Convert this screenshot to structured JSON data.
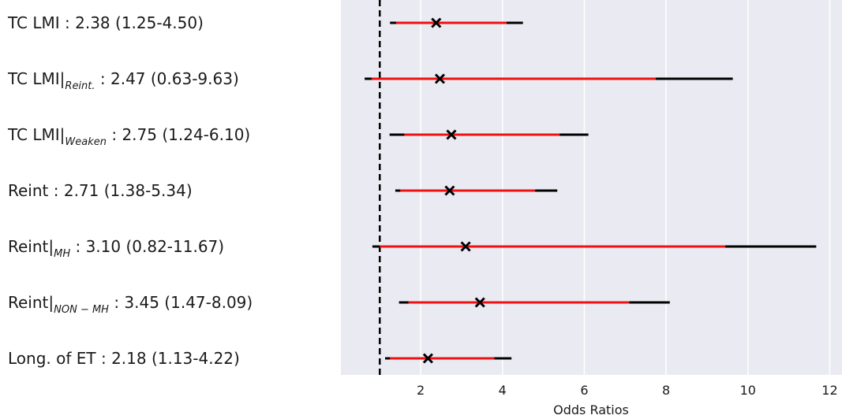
{
  "chart_data": {
    "type": "forest",
    "xlabel": "Odds Ratios",
    "xlim": [
      0.05,
      12.3
    ],
    "xticks": [
      2,
      4,
      6,
      8,
      10,
      12
    ],
    "grid": true,
    "ref_line": 1,
    "background": "#eaeaf2",
    "ci_color": "#000000",
    "inner_color": "#ee1111",
    "marker_color": "#000000",
    "rows": [
      {
        "label": "TC LMI",
        "subscript": null,
        "value_label": " : 2.38 (1.25-4.50)",
        "value": 2.38,
        "low": 1.25,
        "high": 4.5,
        "inner_low": 1.4,
        "inner_high": 4.1
      },
      {
        "label": "TC LMI|",
        "subscript": "Reint.",
        "value_label": " : 2.47 (0.63-9.63)",
        "value": 2.47,
        "low": 0.63,
        "high": 9.63,
        "inner_low": 0.8,
        "inner_high": 7.75
      },
      {
        "label": "TC LMI|",
        "subscript": "Weaken",
        "value_label": " : 2.75 (1.24-6.10)",
        "value": 2.75,
        "low": 1.24,
        "high": 6.1,
        "inner_low": 1.6,
        "inner_high": 5.4
      },
      {
        "label": "Reint",
        "subscript": null,
        "value_label": " : 2.71 (1.38-5.34)",
        "value": 2.71,
        "low": 1.38,
        "high": 5.34,
        "inner_low": 1.5,
        "inner_high": 4.8
      },
      {
        "label": "Reint|",
        "subscript": "MH",
        "value_label": " : 3.10 (0.82-11.67)",
        "value": 3.1,
        "low": 0.82,
        "high": 11.67,
        "inner_low": 1.0,
        "inner_high": 9.45
      },
      {
        "label": "Reint|",
        "subscript": "NON − MH",
        "value_label": " : 3.45 (1.47-8.09)",
        "value": 3.45,
        "low": 1.47,
        "high": 8.09,
        "inner_low": 1.7,
        "inner_high": 7.1
      },
      {
        "label": "Long. of ET",
        "subscript": null,
        "value_label": " : 2.18 (1.13-4.22)",
        "value": 2.18,
        "low": 1.13,
        "high": 4.22,
        "inner_low": 1.25,
        "inner_high": 3.8
      }
    ]
  }
}
